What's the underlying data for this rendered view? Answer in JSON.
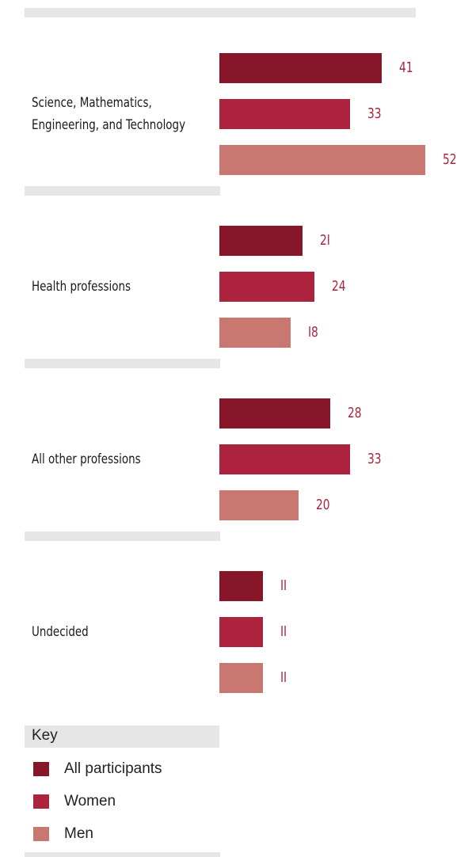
{
  "colors": {
    "all": "#861628",
    "women": "#ad233d",
    "men": "#c97871"
  },
  "chart_data": {
    "type": "bar",
    "orientation": "horizontal",
    "categories": [
      [
        "Science, Mathematics,",
        "Engineering, and Technology"
      ],
      [
        "Health  professions"
      ],
      [
        "All  other  professions"
      ],
      [
        "Undecided"
      ]
    ],
    "series": [
      {
        "name": "All participants",
        "key": "all",
        "values": [
          41,
          21,
          28,
          11
        ]
      },
      {
        "name": "Women",
        "key": "women",
        "values": [
          33,
          24,
          33,
          11
        ]
      },
      {
        "name": "Men",
        "key": "men",
        "values": [
          52,
          18,
          20,
          11
        ]
      }
    ],
    "value_labels": [
      [
        "41",
        "33",
        "52"
      ],
      [
        "2I",
        "24",
        "I8"
      ],
      [
        "28",
        "33",
        "20"
      ],
      [
        "II",
        "II",
        "II"
      ]
    ],
    "xlim": [
      0,
      52
    ]
  },
  "key": {
    "title": "Key",
    "items": [
      {
        "label": "All participants",
        "color": "#861628"
      },
      {
        "label": "Women",
        "color": "#ad233d"
      },
      {
        "label": "Men",
        "color": "#c97871"
      }
    ]
  }
}
